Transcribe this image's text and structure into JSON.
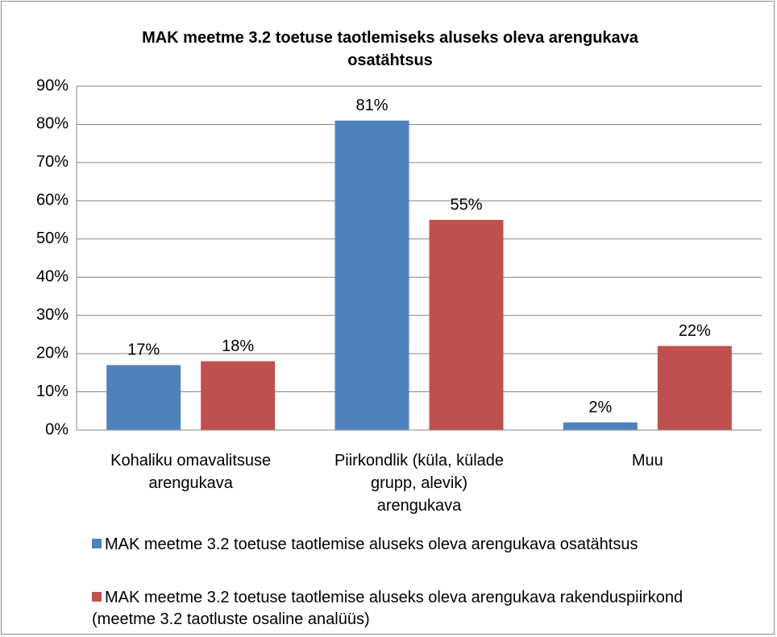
{
  "chart_data": {
    "type": "bar",
    "title": "MAK meetme 3.2 toetuse taotlemiseks aluseks oleva arengukava osatähtsus",
    "categories": [
      "Kohaliku omavalitsuse arengukava",
      "Piirkondlik (küla, külade grupp, alevik) arengukava",
      "Muu"
    ],
    "series": [
      {
        "name": "MAK meetme 3.2 toetuse taotlemise aluseks oleva arengukava osatähtsus",
        "color": "#4f81bd",
        "values": [
          17,
          81,
          2
        ],
        "value_labels": [
          "17%",
          "81%",
          "2%"
        ]
      },
      {
        "name": "MAK meetme 3.2 toetuse taotlemise aluseks oleva arengukava rakenduspiirkond (meetme 3.2 taotluste osaline analüüs)",
        "color": "#c0504d",
        "values": [
          18,
          55,
          22
        ],
        "value_labels": [
          "18%",
          "55%",
          "22%"
        ]
      }
    ],
    "ylim": [
      0,
      90
    ],
    "yticks": [
      {
        "value": 0,
        "label": "0%"
      },
      {
        "value": 10,
        "label": "10%"
      },
      {
        "value": 20,
        "label": "20%"
      },
      {
        "value": 30,
        "label": "30%"
      },
      {
        "value": 40,
        "label": "40%"
      },
      {
        "value": 50,
        "label": "50%"
      },
      {
        "value": 60,
        "label": "60%"
      },
      {
        "value": 70,
        "label": "70%"
      },
      {
        "value": 80,
        "label": "80%"
      },
      {
        "value": 90,
        "label": "90%"
      }
    ],
    "grid": true,
    "legend": "bottom"
  }
}
